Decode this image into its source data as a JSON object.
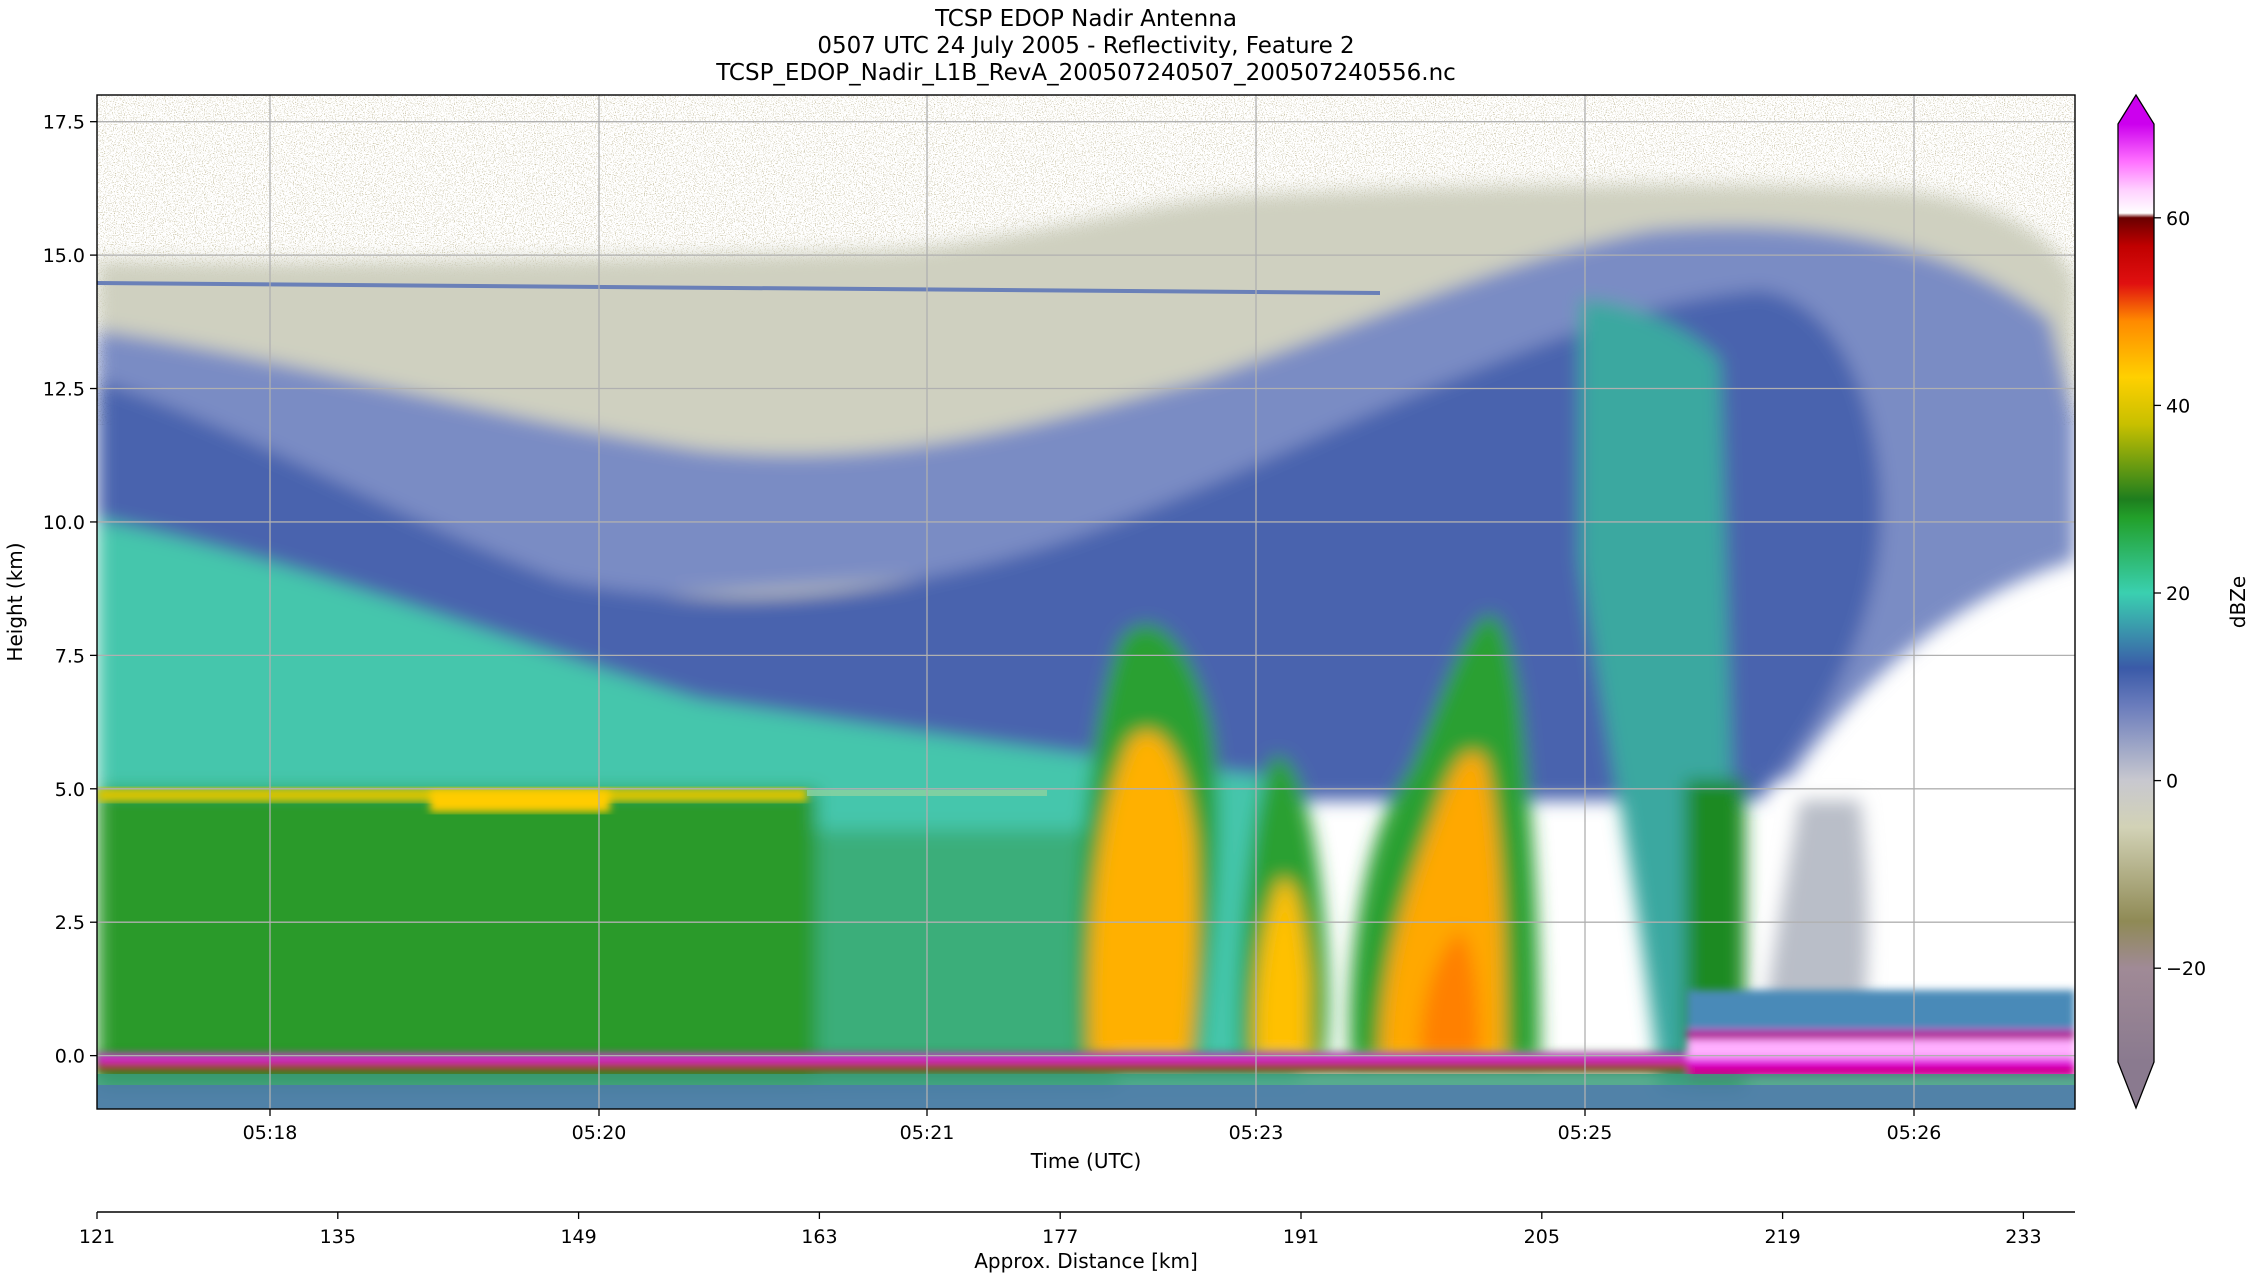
{
  "chart_data": {
    "type": "heatmap",
    "title_lines": [
      "TCSP EDOP Nadir Antenna",
      "0507 UTC 24 July 2005 - Reflectivity, Feature 2",
      "TCSP_EDOP_Nadir_L1B_RevA_200507240507_200507240556.nc"
    ],
    "xlabel": "Time (UTC)",
    "ylabel": "Height (km)",
    "x2label": "Approx. Distance [km]",
    "colorbar_label": "dBZe",
    "x_ticks": [
      "05:18",
      "05:20",
      "05:21",
      "05:23",
      "05:25",
      "05:26"
    ],
    "y_ticks": [
      "17.5",
      "15.0",
      "12.5",
      "10.0",
      "7.5",
      "5.0",
      "2.5",
      "0.0"
    ],
    "y_tick_values": [
      17.5,
      15.0,
      12.5,
      10.0,
      7.5,
      5.0,
      2.5,
      0.0
    ],
    "ylim": [
      -1.0,
      18.0
    ],
    "x2_ticks": [
      "121",
      "135",
      "149",
      "163",
      "177",
      "191",
      "205",
      "219",
      "233"
    ],
    "x2_tick_values": [
      121,
      135,
      149,
      163,
      177,
      191,
      205,
      219,
      233
    ],
    "x2lim": [
      121,
      236
    ],
    "colorbar_ticks": [
      "60",
      "40",
      "20",
      "0",
      "−20"
    ],
    "colorbar_tick_values": [
      60,
      40,
      20,
      0,
      -20
    ],
    "colorbar_range": [
      -30,
      70
    ],
    "colorbar_extend": "both",
    "grid": true,
    "features": {
      "freezing_level_band_km": 5.0,
      "surface_band_km": 0.0,
      "anvil_top_km": 16.0,
      "convective_cores_distance_km": [
        [
          177,
          184
        ],
        [
          187,
          193
        ],
        [
          196,
          206
        ]
      ]
    }
  },
  "colors": {
    "surface_band": "#e000e0",
    "core": "#ffb000",
    "stratiform": "#2a9a2a",
    "anvil": "#5a70b0",
    "noise": "#a89a60"
  }
}
